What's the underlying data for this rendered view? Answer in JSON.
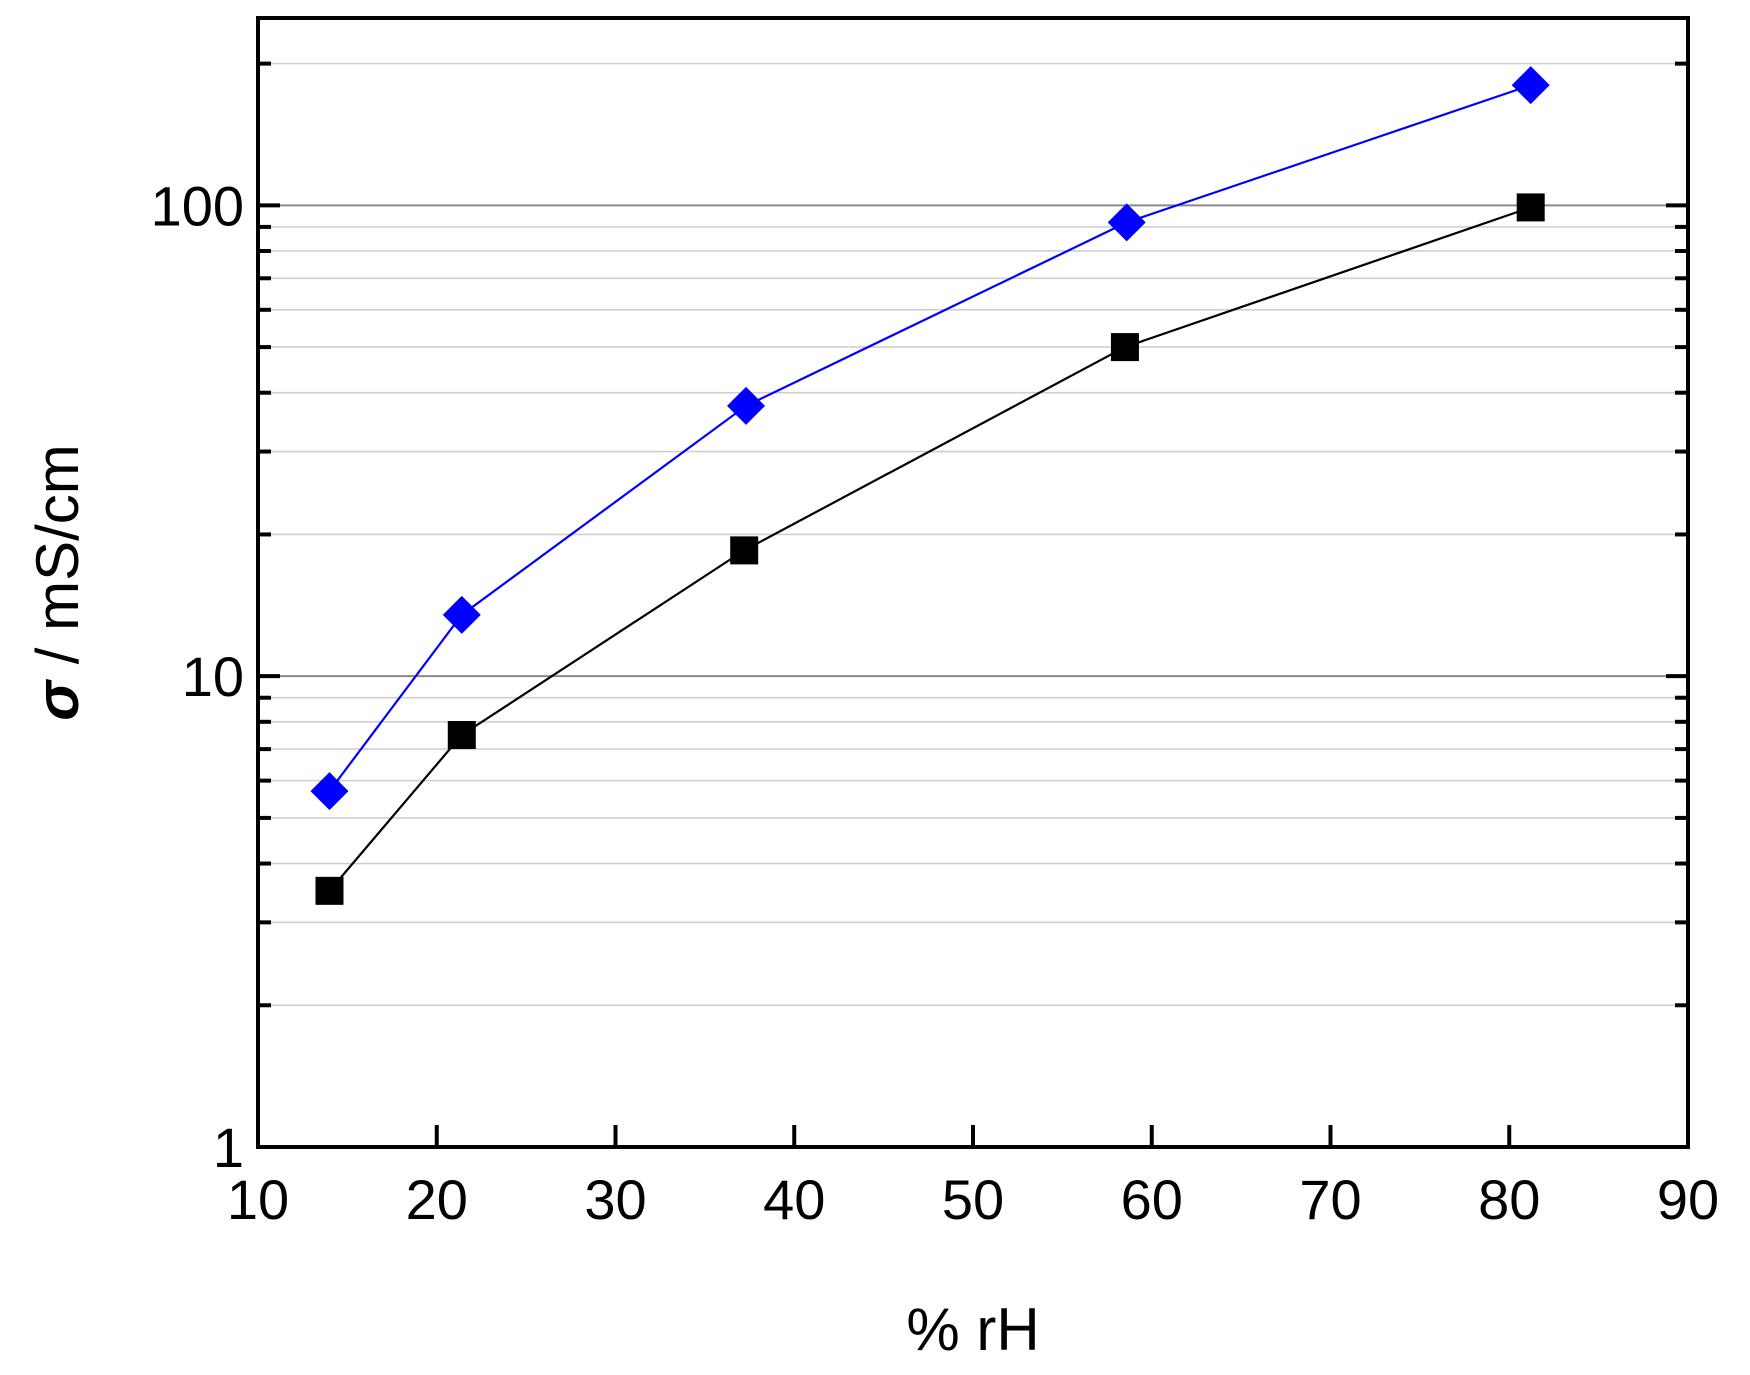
{
  "chart_data": {
    "type": "line",
    "xlabel": "% rH",
    "ylabel_symbol": "σ",
    "ylabel_rest": " / mS/cm",
    "xlim": [
      10,
      90
    ],
    "ylim": [
      1,
      250
    ],
    "yscale": "log",
    "grid": "horizontal, major and minor",
    "x_ticks": [
      10,
      20,
      30,
      40,
      50,
      60,
      70,
      80,
      90
    ],
    "x_tick_labels": [
      "10",
      "20",
      "30",
      "40",
      "50",
      "60",
      "70",
      "80",
      "90"
    ],
    "y_ticks": [
      1,
      10,
      100
    ],
    "y_tick_labels": [
      "1",
      "10",
      "100"
    ],
    "series": [
      {
        "marker": "diamond",
        "color": "#0000ff",
        "x": [
          14,
          21.4,
          37.3,
          58.6,
          81.2
        ],
        "y": [
          5.7,
          13.5,
          37.5,
          92,
          180
        ]
      },
      {
        "marker": "square",
        "color": "#000000",
        "x": [
          14,
          21.4,
          37.2,
          58.5,
          81.2
        ],
        "y": [
          3.5,
          7.5,
          18.5,
          50,
          99
        ]
      }
    ]
  }
}
